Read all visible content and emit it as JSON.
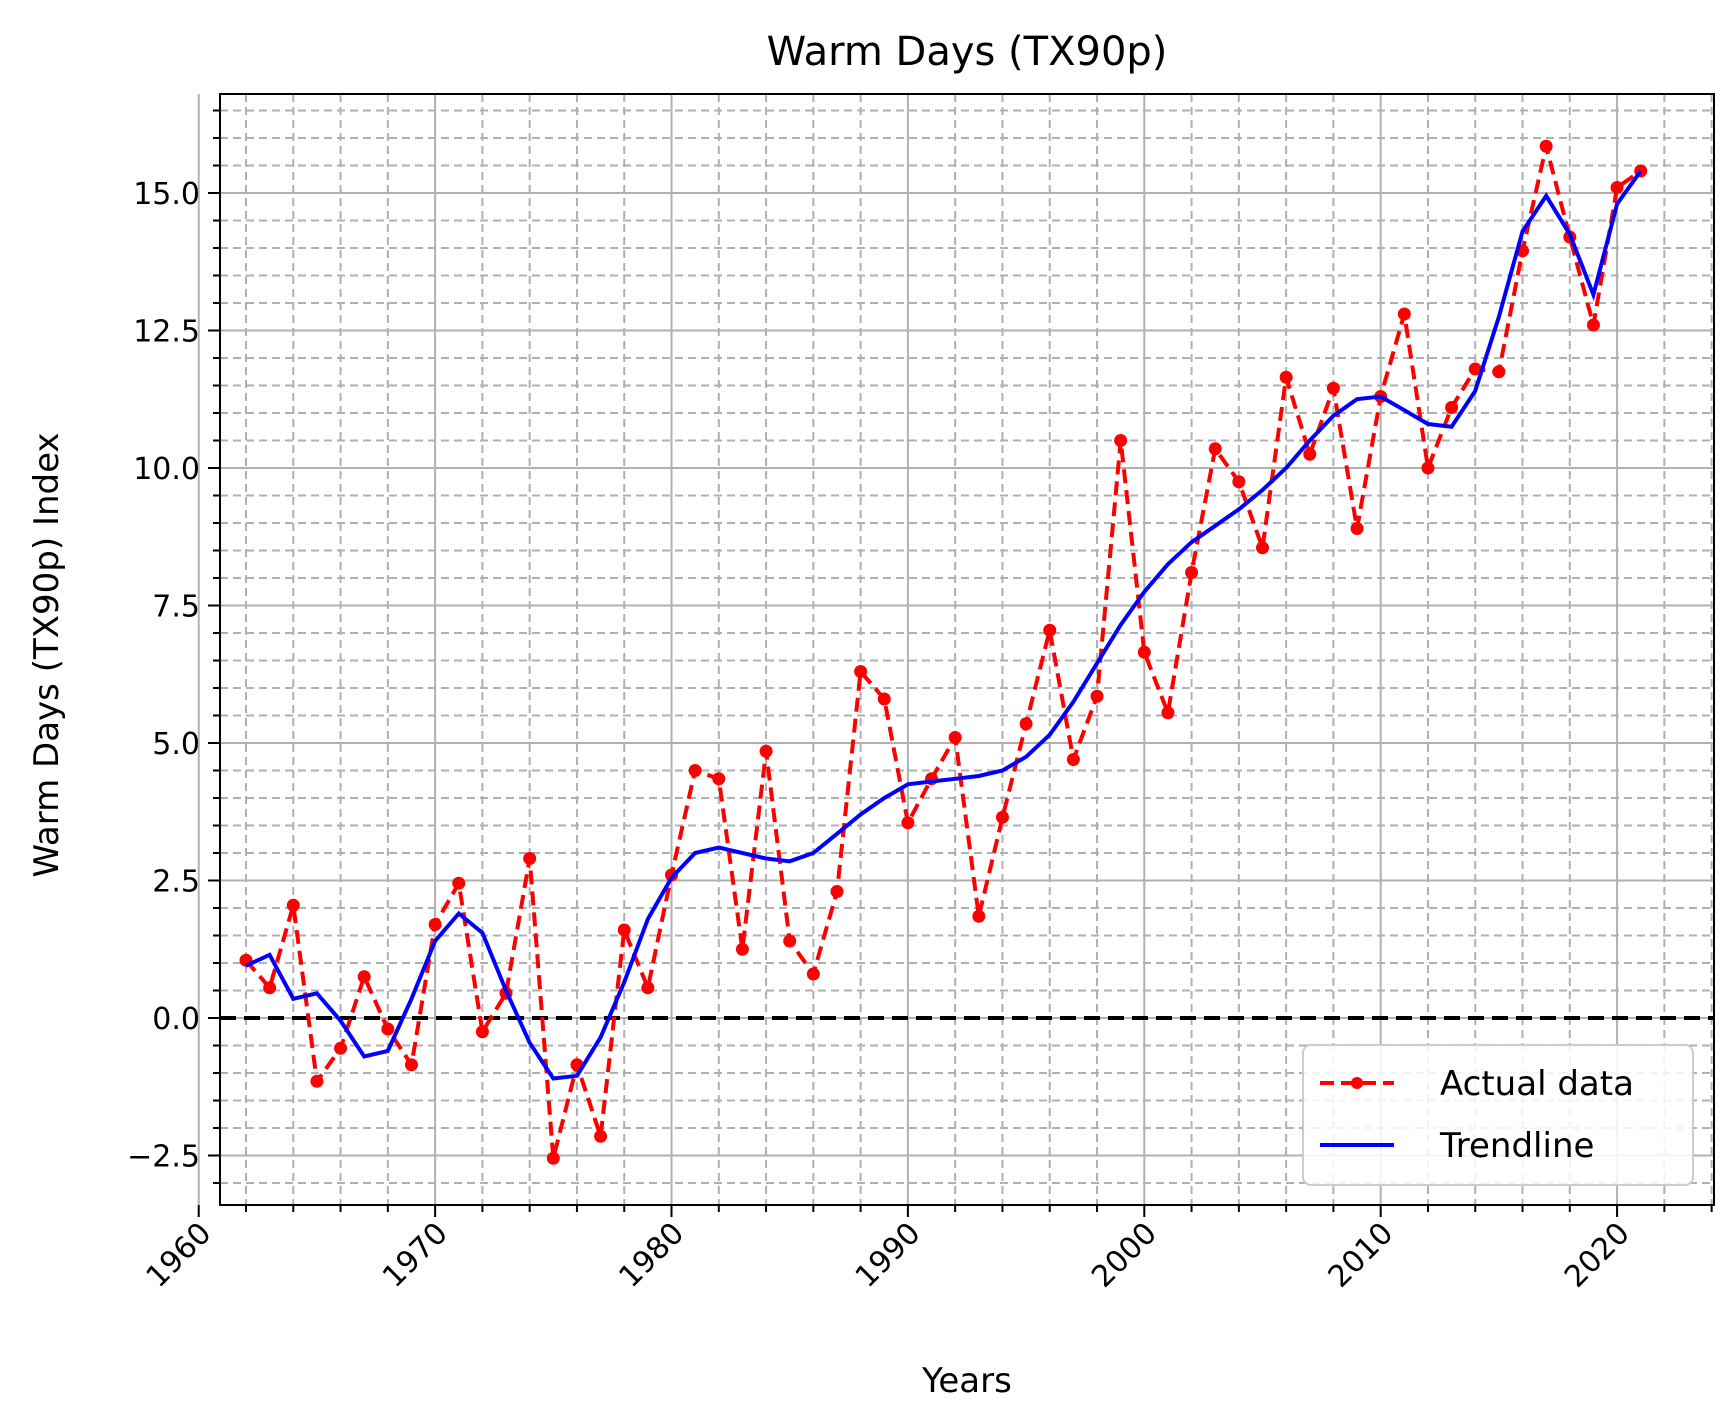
{
  "chart_data": {
    "type": "line",
    "title": "Warm Days (TX90p)",
    "xlabel": "Years",
    "ylabel": "Warm Days (TX90p) Index",
    "xlim": [
      1960.9,
      2024.1
    ],
    "ylim": [
      -3.4,
      16.8
    ],
    "x_ticks": [
      1960,
      1970,
      1980,
      1990,
      2000,
      2010,
      2020
    ],
    "x_tick_labels": [
      "1960",
      "1970",
      "1980",
      "1990",
      "2000",
      "2010",
      "2020"
    ],
    "y_ticks": [
      -2.5,
      0.0,
      2.5,
      5.0,
      7.5,
      10.0,
      12.5,
      15.0
    ],
    "y_tick_labels": [
      "−2.5",
      "0.0",
      "2.5",
      "5.0",
      "7.5",
      "10.0",
      "12.5",
      "15.0"
    ],
    "x_minor_step": 2,
    "y_minor_step": 0.5,
    "grid": true,
    "reference_line": {
      "y": 0,
      "style": "dashed",
      "color": "#000000"
    },
    "legend": {
      "position": "bottom-right",
      "entries": [
        "Actual data",
        "Trendline"
      ]
    },
    "x": [
      1962,
      1963,
      1964,
      1965,
      1966,
      1967,
      1968,
      1969,
      1970,
      1971,
      1972,
      1973,
      1974,
      1975,
      1976,
      1977,
      1978,
      1979,
      1980,
      1981,
      1982,
      1983,
      1984,
      1985,
      1986,
      1987,
      1988,
      1989,
      1990,
      1991,
      1992,
      1993,
      1994,
      1995,
      1996,
      1997,
      1998,
      1999,
      2000,
      2001,
      2002,
      2003,
      2004,
      2005,
      2006,
      2007,
      2008,
      2009,
      2010,
      2011,
      2012,
      2013,
      2014,
      2015,
      2016,
      2017,
      2018,
      2019,
      2020,
      2021
    ],
    "series": [
      {
        "name": "Actual data",
        "color": "#ff0000",
        "style": "dashed-markers",
        "values": [
          1.05,
          0.55,
          2.05,
          -1.15,
          -0.55,
          0.75,
          -0.2,
          -0.85,
          1.7,
          2.45,
          -0.25,
          0.45,
          2.9,
          -2.55,
          -0.85,
          -2.15,
          1.6,
          0.55,
          2.6,
          4.5,
          4.35,
          1.25,
          4.85,
          1.4,
          0.8,
          2.3,
          6.3,
          5.8,
          3.55,
          4.35,
          5.1,
          1.85,
          3.65,
          5.35,
          7.05,
          4.7,
          5.85,
          10.5,
          6.65,
          5.55,
          8.1,
          10.35,
          9.75,
          8.55,
          11.65,
          10.25,
          11.45,
          8.9,
          11.3,
          12.8,
          10.0,
          11.1,
          11.8,
          11.75,
          13.95,
          15.85,
          14.2,
          12.6,
          15.1,
          15.4
        ]
      },
      {
        "name": "Trendline",
        "color": "#0000ff",
        "style": "solid",
        "values": [
          0.95,
          1.15,
          0.35,
          0.45,
          -0.05,
          -0.7,
          -0.6,
          0.35,
          1.4,
          1.9,
          1.55,
          0.5,
          -0.45,
          -1.1,
          -1.05,
          -0.35,
          0.65,
          1.8,
          2.55,
          3.0,
          3.1,
          3.0,
          2.9,
          2.85,
          3.0,
          3.35,
          3.7,
          4.0,
          4.25,
          4.3,
          4.35,
          4.4,
          4.5,
          4.75,
          5.15,
          5.75,
          6.45,
          7.15,
          7.75,
          8.25,
          8.65,
          8.95,
          9.25,
          9.6,
          10.0,
          10.5,
          10.95,
          11.25,
          11.3,
          11.05,
          10.8,
          10.75,
          11.4,
          12.75,
          14.3,
          14.95,
          14.25,
          13.15,
          14.8,
          15.4
        ]
      }
    ]
  }
}
